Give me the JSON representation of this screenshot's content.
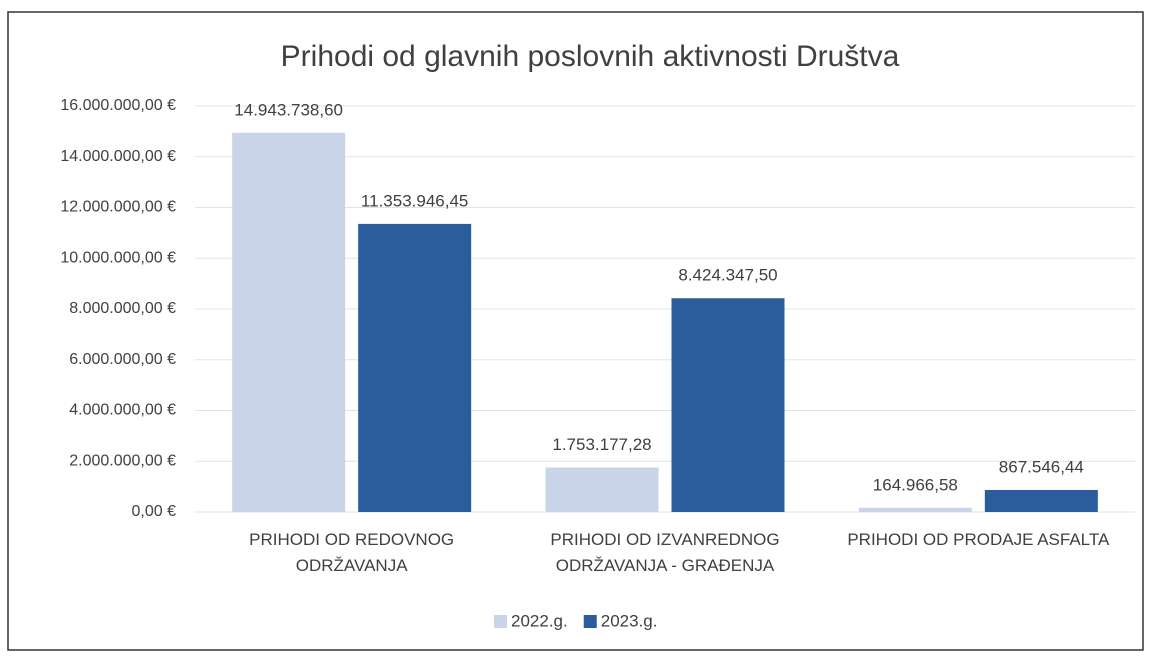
{
  "chart_data": {
    "type": "bar",
    "title": "Prihodi od glavnih poslovnih aktivnosti Društva",
    "categories": [
      "PRIHODI OD REDOVNOG ODRŽAVANJA",
      "PRIHODI OD IZVANREDNOG ODRŽAVANJA - GRAĐENJA",
      "PRIHODI OD PRODAJE ASFALTA"
    ],
    "series": [
      {
        "name": "2022.g.",
        "color": "#c9d4e8",
        "values": [
          14943738.6,
          1753177.28,
          164966.58
        ],
        "value_labels": [
          "14.943.738,60",
          "1.753.177,28",
          "164.966,58"
        ]
      },
      {
        "name": "2023.g.",
        "color": "#2b5c9c",
        "values": [
          11353946.45,
          8424347.5,
          867546.44
        ],
        "value_labels": [
          "11.353.946,45",
          "8.424.347,50",
          "867.546,44"
        ]
      }
    ],
    "ylim": [
      0,
      16000000
    ],
    "yticks": [
      {
        "value": 0,
        "label": "0,00 €"
      },
      {
        "value": 2000000,
        "label": "2.000.000,00 €"
      },
      {
        "value": 4000000,
        "label": "4.000.000,00 €"
      },
      {
        "value": 6000000,
        "label": "6.000.000,00 €"
      },
      {
        "value": 8000000,
        "label": "8.000.000,00 €"
      },
      {
        "value": 10000000,
        "label": "10.000.000,00 €"
      },
      {
        "value": 12000000,
        "label": "12.000.000,00 €"
      },
      {
        "value": 14000000,
        "label": "14.000.000,00 €"
      },
      {
        "value": 16000000,
        "label": "16.000.000,00 €"
      }
    ],
    "grid": true,
    "legend": "bottom"
  }
}
